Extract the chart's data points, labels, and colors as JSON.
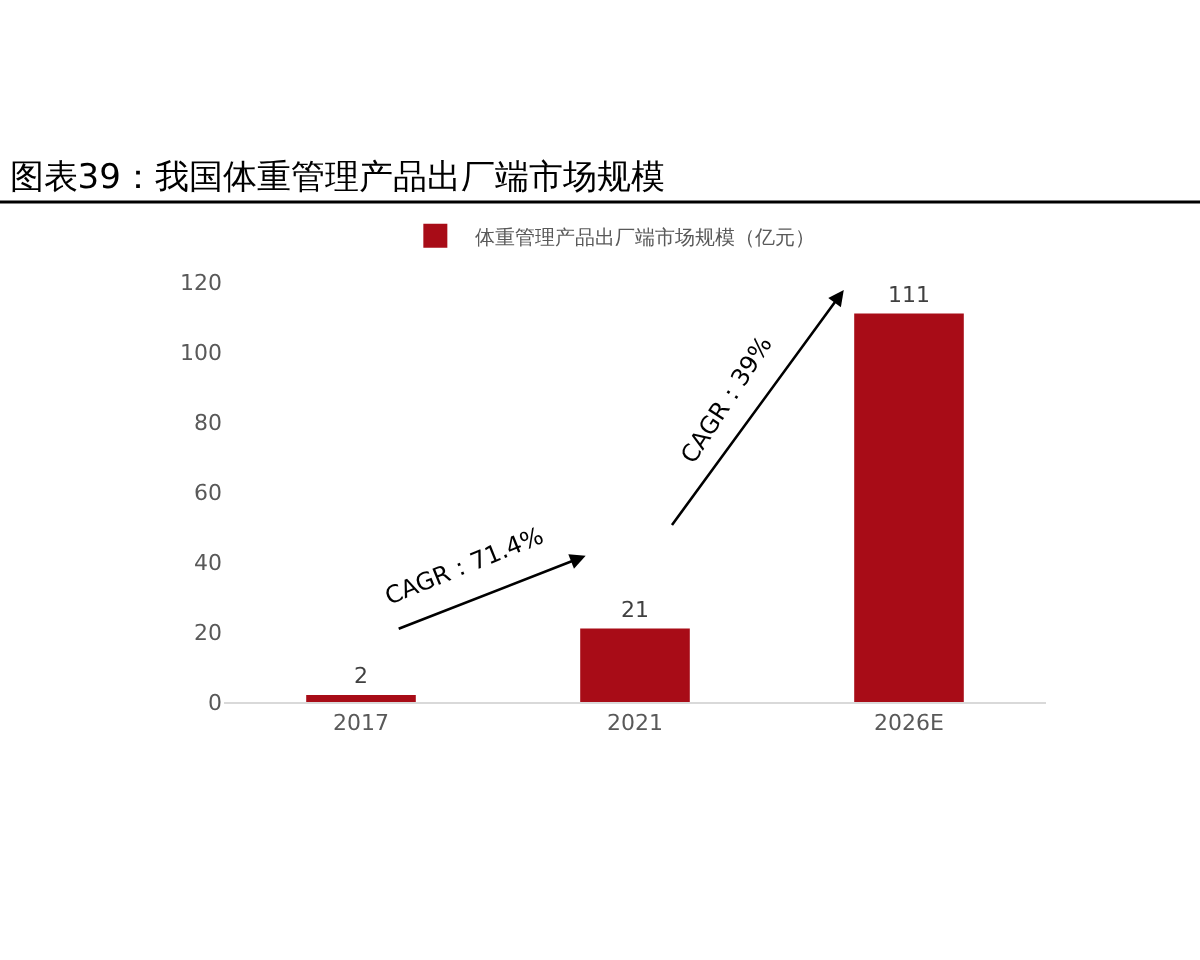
{
  "chart_data": {
    "type": "bar",
    "title": "图表39：我国体重管理产品出厂端市场规模",
    "categories": [
      "2017",
      "2021",
      "2026E"
    ],
    "series": [
      {
        "name": "体重管理产品出厂端市场规模（亿元）",
        "color": "#a80c17",
        "values": [
          2,
          21,
          111
        ]
      }
    ],
    "ylim": [
      0,
      120
    ],
    "yticks": [
      0,
      20,
      40,
      60,
      80,
      100,
      120
    ],
    "data_labels": true,
    "grid": false,
    "legend": "top",
    "annotations": [
      "CAGR：71.4%",
      "CAGR：39%"
    ]
  }
}
